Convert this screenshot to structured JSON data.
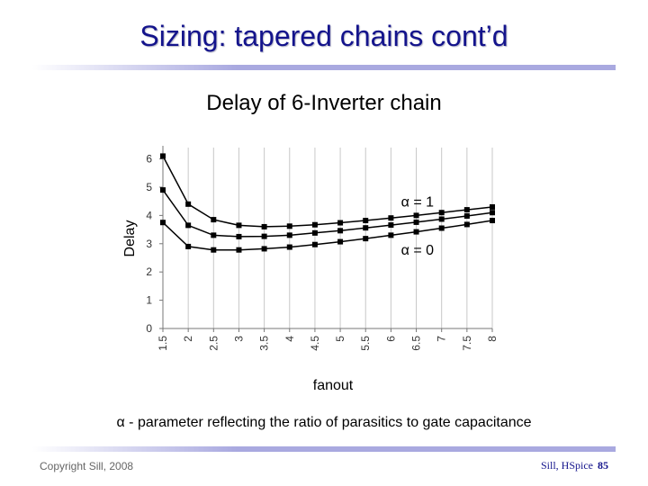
{
  "slide": {
    "title": "Sizing: tapered chains cont’d",
    "caption": "α - parameter reflecting the ratio of parasitics to gate capacitance",
    "footer_left": "Copyright Sill, 2008",
    "footer_right": "Sill, HSpice",
    "page_number": "85"
  },
  "colors": {
    "title": "#14148c",
    "rule": "#a9a9e0",
    "series": "#000000"
  },
  "chart_data": {
    "type": "line",
    "title": "Delay of 6-Inverter chain",
    "xlabel": "fanout",
    "ylabel": "Delay",
    "x": [
      1.5,
      2,
      2.5,
      3,
      3.5,
      4,
      4.5,
      5,
      5.5,
      6,
      6.5,
      7,
      7.5,
      8
    ],
    "x_tick_labels": [
      "1.5",
      "2",
      "2.5",
      "3",
      "3.5",
      "4",
      "4.5",
      "5",
      "5.5",
      "6",
      "6.5",
      "7",
      "7.5",
      "8"
    ],
    "y_tick_labels": [
      "0",
      "1",
      "2",
      "3",
      "4",
      "5",
      "6"
    ],
    "xlim": [
      1.5,
      8
    ],
    "ylim": [
      0,
      6.4
    ],
    "grid": true,
    "annotations": [
      {
        "text": "α = 1",
        "x": 6.2,
        "y": 4.5
      },
      {
        "text": "α = 0",
        "x": 6.2,
        "y": 2.8
      }
    ],
    "series": [
      {
        "values": [
          6.1,
          4.4,
          3.85,
          3.65,
          3.6,
          3.62,
          3.67,
          3.74,
          3.82,
          3.91,
          4.0,
          4.1,
          4.2,
          4.3
        ]
      },
      {
        "values": [
          4.9,
          3.65,
          3.3,
          3.25,
          3.26,
          3.3,
          3.38,
          3.46,
          3.56,
          3.66,
          3.76,
          3.87,
          3.98,
          4.1
        ]
      },
      {
        "values": [
          3.75,
          2.9,
          2.78,
          2.78,
          2.82,
          2.88,
          2.97,
          3.07,
          3.18,
          3.3,
          3.42,
          3.55,
          3.68,
          3.82
        ]
      }
    ]
  }
}
